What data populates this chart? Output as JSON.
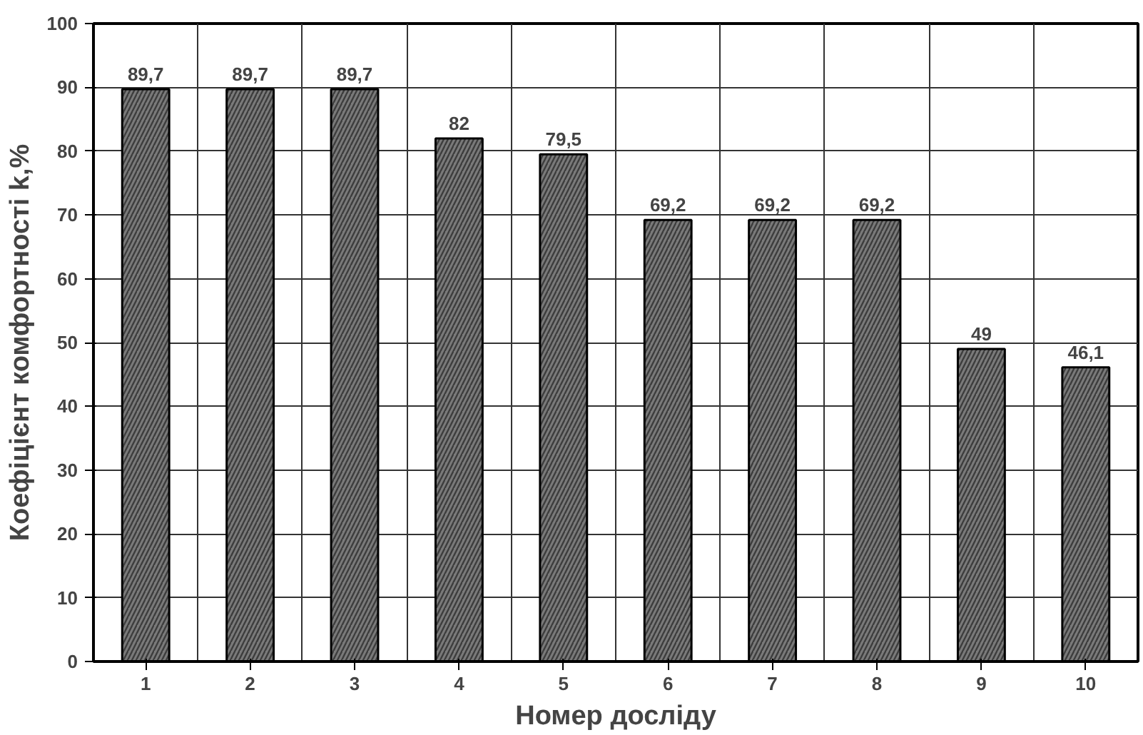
{
  "chart_data": {
    "type": "bar",
    "xlabel": "Номер досліду",
    "ylabel": "Коефіцієнт комфортності k,%",
    "categories": [
      "1",
      "2",
      "3",
      "4",
      "5",
      "6",
      "7",
      "8",
      "9",
      "10"
    ],
    "values": [
      89.7,
      89.7,
      89.7,
      82,
      79.5,
      69.2,
      69.2,
      69.2,
      49,
      46.1
    ],
    "value_labels": [
      "89,7",
      "89,7",
      "89,7",
      "82",
      "79,5",
      "69,2",
      "69,2",
      "69,2",
      "49",
      "46,1"
    ],
    "color": "#7a7a7a",
    "ylim": [
      0,
      100
    ],
    "yticks": [
      0,
      10,
      20,
      30,
      40,
      50,
      60,
      70,
      80,
      90,
      100
    ],
    "grid": true
  }
}
